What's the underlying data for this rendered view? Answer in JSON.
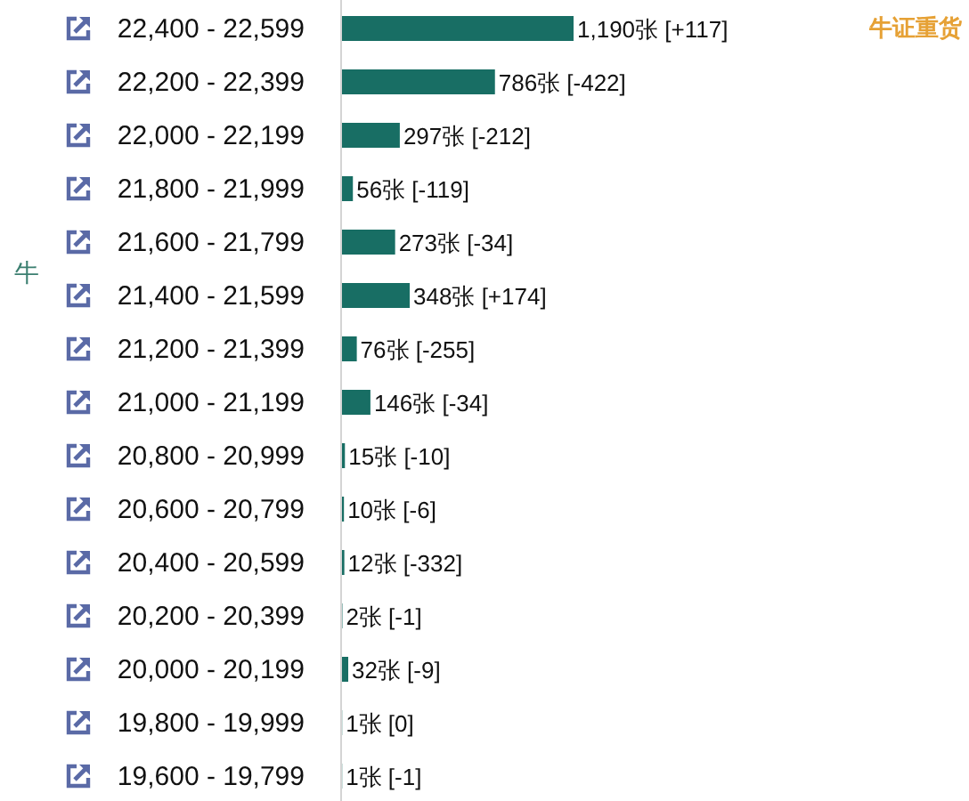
{
  "chart_data": {
    "type": "bar",
    "orientation": "horizontal",
    "title": "牛证重货",
    "ylabel": "牛",
    "color": "#186e64",
    "categories": [
      "22,400 - 22,599",
      "22,200 - 22,399",
      "22,000 - 22,199",
      "21,800 - 21,999",
      "21,600 - 21,799",
      "21,400 - 21,599",
      "21,200 - 21,399",
      "21,000 - 21,199",
      "20,800 - 20,999",
      "20,600 - 20,799",
      "20,400 - 20,599",
      "20,200 - 20,399",
      "20,000 - 20,199",
      "19,800 - 19,999",
      "19,600 - 19,799"
    ],
    "values": [
      1190,
      786,
      297,
      56,
      273,
      348,
      76,
      146,
      15,
      10,
      12,
      2,
      32,
      1,
      1
    ],
    "value_labels": [
      "1,190张 [+117]",
      "786张 [-422]",
      "297张 [-212]",
      "56张 [-119]",
      "273张 [-34]",
      "348张 [+174]",
      "76张 [-255]",
      "146张 [-34]",
      "15张 [-10]",
      "10张 [-6]",
      "12张 [-332]",
      "2张 [-1]",
      "32张 [-9]",
      "1张 [0]",
      "1张 [-1]"
    ]
  }
}
